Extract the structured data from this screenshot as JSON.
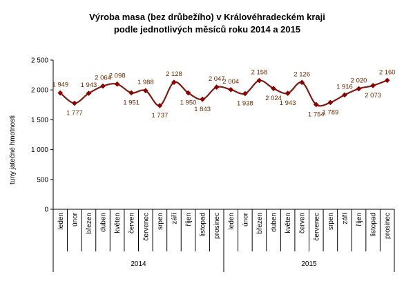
{
  "chart_data": {
    "type": "line",
    "title_lines": [
      "Výroba masa (bez drůbežího) v Královéhradeckém  kraji",
      "podle jednotlivých  měsíců roku 2014 a 2015"
    ],
    "ylabel": "tuny jatečné hmotnosti",
    "xlabel": "",
    "ylim": [
      0,
      2500
    ],
    "yticks": [
      0,
      500,
      1000,
      1500,
      2000,
      2500
    ],
    "ytick_labels": [
      "0",
      "500",
      "1 000",
      "1 500",
      "2 000",
      "2 500"
    ],
    "grid": false,
    "legend": "none",
    "line_color": "#7b1a10",
    "marker_color": "#8b0000",
    "label_color": "#6b2a00",
    "years": [
      {
        "label": "2014",
        "count": 12
      },
      {
        "label": "2015",
        "count": 12
      }
    ],
    "categories": [
      "leden",
      "únor",
      "březen",
      "duben",
      "květen",
      "červen",
      "červenec",
      "srpen",
      "září",
      "říjen",
      "listopad",
      "prosinec",
      "leden",
      "únor",
      "březen",
      "duben",
      "květen",
      "červen",
      "červenec",
      "srpen",
      "září",
      "říjen",
      "listopad",
      "prosinec"
    ],
    "values": [
      1949,
      1777,
      1943,
      2064,
      2098,
      1951,
      1988,
      1737,
      2128,
      1950,
      1843,
      2047,
      2004,
      1938,
      2158,
      2024,
      1943,
      2126,
      1754,
      1789,
      1916,
      2020,
      2073,
      2160
    ],
    "value_labels": [
      "1 949",
      "1 777",
      "1 943",
      "2 064",
      "2 098",
      "1 951",
      "1 988",
      "1 737",
      "2 128",
      "1 950",
      "1 843",
      "2 047",
      "2 004",
      "1 938",
      "2 158",
      "2 024",
      "1 943",
      "2 126",
      "1 754",
      "1 789",
      "1 916",
      "2 020",
      "2 073",
      "2 160"
    ]
  }
}
